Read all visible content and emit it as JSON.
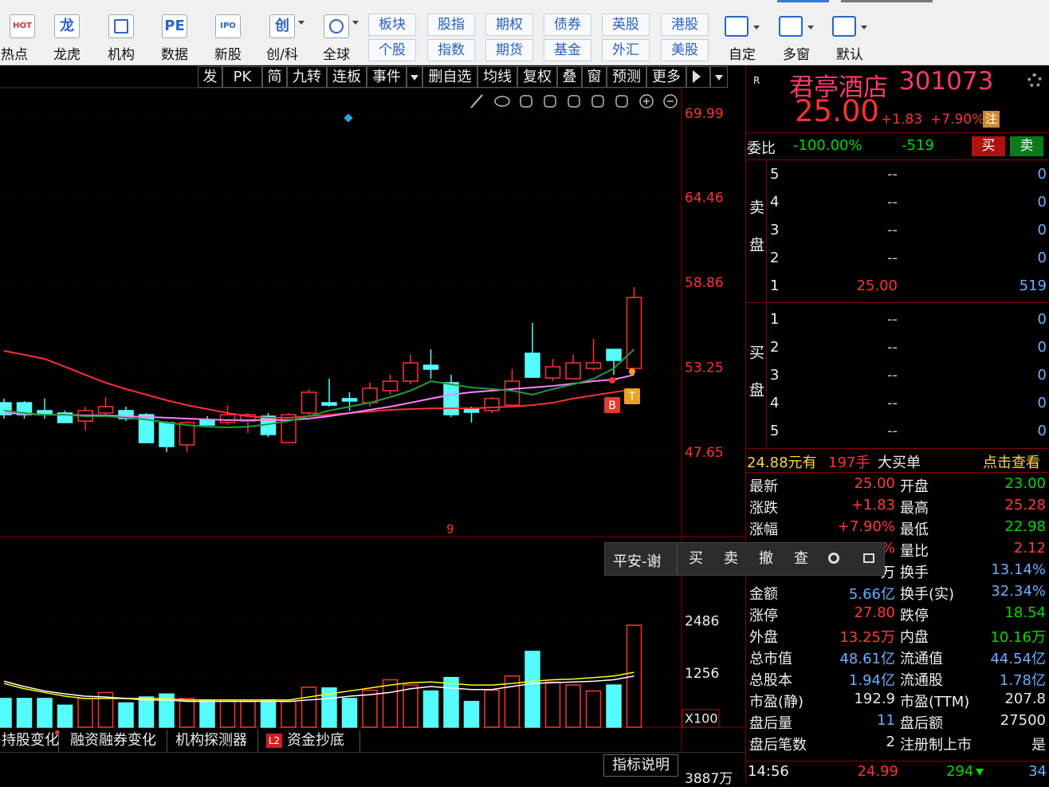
{
  "toolbar": {
    "buttons": [
      {
        "icon": "HOT",
        "label": "热点"
      },
      {
        "icon": "龙",
        "label": "龙虎"
      },
      {
        "label": "机构"
      },
      {
        "icon": "PE",
        "label": "数据"
      },
      {
        "icon": "IPO",
        "label": "新股"
      },
      {
        "icon": "创",
        "label": "创/科"
      },
      {
        "label": "全球"
      }
    ],
    "markets": [
      [
        "板块",
        "股指",
        "期权",
        "债券",
        "英股",
        "港股"
      ],
      [
        "个股",
        "指数",
        "期货",
        "基金",
        "外汇",
        "美股"
      ]
    ],
    "right_buttons": [
      "自定",
      "多窗",
      "默认"
    ]
  },
  "chart_toolbar": [
    "发",
    "PK",
    "简",
    "九转",
    "连板",
    "事件",
    "删自选",
    "均线",
    "复权",
    "叠",
    "窗",
    "预测",
    "更多"
  ],
  "kline": {
    "type": "candlestick",
    "ylim": [
      42.13,
      71.73
    ],
    "yticks": [
      69.99,
      64.46,
      58.86,
      53.25,
      47.65
    ],
    "up_color": "#ff3232",
    "down_color": "#54fcfc",
    "candles": [
      {
        "open": 50.96,
        "high": 51.23,
        "low": 49.91,
        "close": 50.17
      },
      {
        "open": 50.96,
        "high": 51.07,
        "low": 49.91,
        "close": 50.17
      },
      {
        "open": 50.44,
        "high": 51.23,
        "low": 49.91,
        "close": 50.17
      },
      {
        "open": 50.28,
        "high": 50.44,
        "low": 49.65,
        "close": 49.65
      },
      {
        "open": 49.75,
        "high": 50.7,
        "low": 49.12,
        "close": 50.44
      },
      {
        "open": 50.28,
        "high": 51.33,
        "low": 50.17,
        "close": 50.7
      },
      {
        "open": 50.44,
        "high": 50.7,
        "low": 49.75,
        "close": 49.91
      },
      {
        "open": 50.17,
        "high": 50.28,
        "low": 48.28,
        "close": 48.33
      },
      {
        "open": 49.65,
        "high": 49.75,
        "low": 47.7,
        "close": 48.07
      },
      {
        "open": 48.18,
        "high": 49.75,
        "low": 47.7,
        "close": 49.65
      },
      {
        "open": 49.81,
        "high": 50.07,
        "low": 49.49,
        "close": 49.49
      },
      {
        "open": 49.65,
        "high": 50.8,
        "low": 49.49,
        "close": 50.17
      },
      {
        "open": 49.75,
        "high": 50.28,
        "low": 48.96,
        "close": 50.17
      },
      {
        "open": 50.07,
        "high": 50.28,
        "low": 48.7,
        "close": 48.86
      },
      {
        "open": 48.33,
        "high": 50.28,
        "low": 48.28,
        "close": 50.17
      },
      {
        "open": 50.28,
        "high": 51.86,
        "low": 50.07,
        "close": 51.65
      },
      {
        "open": 50.96,
        "high": 52.54,
        "low": 50.7,
        "close": 50.8
      },
      {
        "open": 51.23,
        "high": 51.65,
        "low": 50.44,
        "close": 51.07
      },
      {
        "open": 50.96,
        "high": 52.28,
        "low": 50.7,
        "close": 51.91
      },
      {
        "open": 51.75,
        "high": 52.8,
        "low": 51.49,
        "close": 52.38
      },
      {
        "open": 52.38,
        "high": 54.12,
        "low": 52.17,
        "close": 53.59
      },
      {
        "open": 53.43,
        "high": 54.48,
        "low": 52.54,
        "close": 53.17
      },
      {
        "open": 52.28,
        "high": 52.8,
        "low": 50.02,
        "close": 50.17
      },
      {
        "open": 50.59,
        "high": 50.7,
        "low": 49.65,
        "close": 50.33
      },
      {
        "open": 50.44,
        "high": 51.33,
        "low": 50.28,
        "close": 51.23
      },
      {
        "open": 50.8,
        "high": 53.17,
        "low": 50.7,
        "close": 52.38
      },
      {
        "open": 54.22,
        "high": 56.22,
        "low": 52.59,
        "close": 52.64
      },
      {
        "open": 52.59,
        "high": 53.85,
        "low": 52.38,
        "close": 53.33
      },
      {
        "open": 52.54,
        "high": 54.12,
        "low": 52.54,
        "close": 53.59
      },
      {
        "open": 53.22,
        "high": 55.17,
        "low": 53.07,
        "close": 53.59
      },
      {
        "open": 54.48,
        "high": 54.48,
        "low": 52.8,
        "close": 53.75
      },
      {
        "open": 53.22,
        "high": 58.59,
        "low": 53.22,
        "close": 57.9
      }
    ],
    "ma": [
      {
        "color": "#ff3030",
        "values": [
          54.38,
          54.12,
          53.85,
          53.33,
          52.8,
          52.28,
          51.86,
          51.49,
          51.12,
          50.8,
          50.54,
          50.28,
          50.07,
          49.97,
          49.97,
          50.07,
          50.17,
          50.28,
          50.38,
          50.49,
          50.54,
          50.59,
          50.59,
          50.59,
          50.65,
          50.7,
          50.8,
          50.96,
          51.23,
          51.44,
          51.65,
          51.86
        ]
      },
      {
        "color": "#ff80ff",
        "values": [
          50.28,
          50.23,
          50.17,
          50.17,
          50.12,
          50.12,
          50.07,
          50.02,
          49.97,
          49.91,
          49.86,
          49.81,
          49.81,
          49.81,
          49.81,
          49.91,
          50.07,
          50.28,
          50.49,
          50.7,
          50.96,
          51.23,
          51.49,
          51.65,
          51.75,
          51.86,
          51.96,
          52.07,
          52.22,
          52.38,
          52.49,
          52.8
        ]
      },
      {
        "color": "#1f9a3c",
        "values": [
          50.44,
          50.28,
          50.17,
          50.17,
          50.07,
          50.07,
          49.97,
          49.86,
          49.65,
          49.49,
          49.38,
          49.33,
          49.38,
          49.54,
          49.75,
          50.07,
          50.44,
          50.7,
          50.96,
          51.33,
          51.75,
          52.38,
          52.17,
          51.96,
          51.86,
          51.75,
          51.49,
          51.86,
          52.17,
          52.54,
          53.22,
          54.48
        ]
      }
    ],
    "marker_label": "9",
    "badges": [
      "B",
      "T"
    ]
  },
  "volume": {
    "type": "bar",
    "ylim": [
      0,
      4350
    ],
    "yticks": [
      2486,
      1256
    ],
    "unit": "X100",
    "values": [
      676,
      676,
      676,
      518,
      676,
      817,
      571,
      711,
      782,
      676,
      641,
      641,
      606,
      641,
      606,
      940,
      922,
      676,
      869,
      1115,
      992,
      852,
      1168,
      606,
      869,
      1203,
      1783,
      1063,
      992,
      852,
      992,
      2398
    ],
    "ma": [
      {
        "color": "#ffff00",
        "values": [
          1028,
          905,
          817,
          729,
          676,
          676,
          676,
          676,
          676,
          641,
          641,
          641,
          641,
          641,
          641,
          711,
          782,
          852,
          922,
          992,
          1045,
          1063,
          1028,
          992,
          992,
          1028,
          1080,
          1115,
          1133,
          1168,
          1203,
          1291
        ]
      },
      {
        "color": "#ffffff",
        "values": [
          1080,
          957,
          852,
          782,
          729,
          711,
          676,
          641,
          641,
          606,
          606,
          606,
          606,
          606,
          606,
          641,
          676,
          729,
          764,
          817,
          905,
          957,
          922,
          887,
          887,
          957,
          1028,
          1045,
          1063,
          1080,
          1115,
          1203
        ]
      }
    ]
  },
  "tabs": [
    "持股变化",
    "融资融券变化",
    "机构探测器",
    "资金抄底"
  ],
  "l2_badge": "L2",
  "indicator_button": "指标说明",
  "bottom_value": "3887万",
  "quote": {
    "logo": "R",
    "name": "君亭酒店",
    "code": "301073",
    "price": "25.00",
    "change": "+1.83",
    "change_pct": "+7.90%",
    "badge": "注"
  },
  "ratio": {
    "label": "委比",
    "pct": "-100.00%",
    "diff": "-519",
    "buy": "买",
    "sell": "卖"
  },
  "order_book": {
    "sell_label": "卖盘",
    "buy_label": "买盘",
    "sell": [
      {
        "level": 5,
        "price": "--",
        "volume": "0"
      },
      {
        "level": 4,
        "price": "--",
        "volume": "0"
      },
      {
        "level": 3,
        "price": "--",
        "volume": "0"
      },
      {
        "level": 2,
        "price": "--",
        "volume": "0"
      },
      {
        "level": 1,
        "price": "25.00",
        "volume": "519"
      }
    ],
    "buy": [
      {
        "level": 1,
        "price": "--",
        "volume": "0"
      },
      {
        "level": 2,
        "price": "--",
        "volume": "0"
      },
      {
        "level": 3,
        "price": "--",
        "volume": "0"
      },
      {
        "level": 4,
        "price": "--",
        "volume": "0"
      },
      {
        "level": 5,
        "price": "--",
        "volume": "0"
      }
    ]
  },
  "big_order": {
    "price": "24.88元有",
    "hands": "197手",
    "kind": "大买单",
    "link": "点击查看"
  },
  "stats": [
    {
      "l1": "最新",
      "v1": "25.00",
      "c1": "#ff3a3a",
      "l2": "开盘",
      "v2": "23.00",
      "c2": "#00d800"
    },
    {
      "l1": "涨跌",
      "v1": "+1.83",
      "c1": "#ff3a3a",
      "l2": "最高",
      "v2": "25.28",
      "c2": "#ff3a3a"
    },
    {
      "l1": "涨幅",
      "v1": "+7.90%",
      "c1": "#ff3a3a",
      "l2": "最低",
      "v2": "22.98",
      "c2": "#00d800"
    },
    {
      "v1": "%",
      "c1": "#ff3a3a",
      "l2": "量比",
      "v2": "2.12",
      "c2": "#ff3a3a"
    },
    {
      "v1": "万",
      "c1": "#ffffff",
      "l2": "换手",
      "v2": "13.14%",
      "c2": "#6aaeff"
    },
    {
      "l1": "金额",
      "v1": "5.66亿",
      "c1": "#6aaeff",
      "l2": "换手(实)",
      "v2": "32.34%",
      "c2": "#6aaeff"
    },
    {
      "l1": "涨停",
      "v1": "27.80",
      "c1": "#ff3a3a",
      "l2": "跌停",
      "v2": "18.54",
      "c2": "#00d800"
    },
    {
      "l1": "外盘",
      "v1": "13.25万",
      "c1": "#ff3a3a",
      "l2": "内盘",
      "v2": "10.16万",
      "c2": "#00d800"
    },
    {
      "l1": "总市值",
      "v1": "48.61亿",
      "c1": "#6aaeff",
      "l2": "流通值",
      "v2": "44.54亿",
      "c2": "#6aaeff"
    },
    {
      "l1": "总股本",
      "v1": "1.94亿",
      "c1": "#6aaeff",
      "l2": "流通股",
      "v2": "1.78亿",
      "c2": "#6aaeff"
    },
    {
      "l1": "市盈(静)",
      "v1": "192.9",
      "c1": "#e8e8e8",
      "l2": "市盈(TTM)",
      "v2": "207.8",
      "c2": "#e8e8e8"
    },
    {
      "l1": "盘后量",
      "v1": "11",
      "c1": "#6aaeff",
      "l2": "盘后额",
      "v2": "27500",
      "c2": "#e8e8e8"
    },
    {
      "l1": "盘后笔数",
      "v1": "2",
      "c1": "#e8e8e8",
      "l2": "注册制上市",
      "v2": "是",
      "c2": "#e8e8e8"
    }
  ],
  "trade_bar": {
    "account": "平安-谢",
    "buttons": [
      "买",
      "卖",
      "撤",
      "查"
    ]
  },
  "tick": {
    "time": "14:56",
    "price": "24.99",
    "volume": "294",
    "count": "34"
  }
}
